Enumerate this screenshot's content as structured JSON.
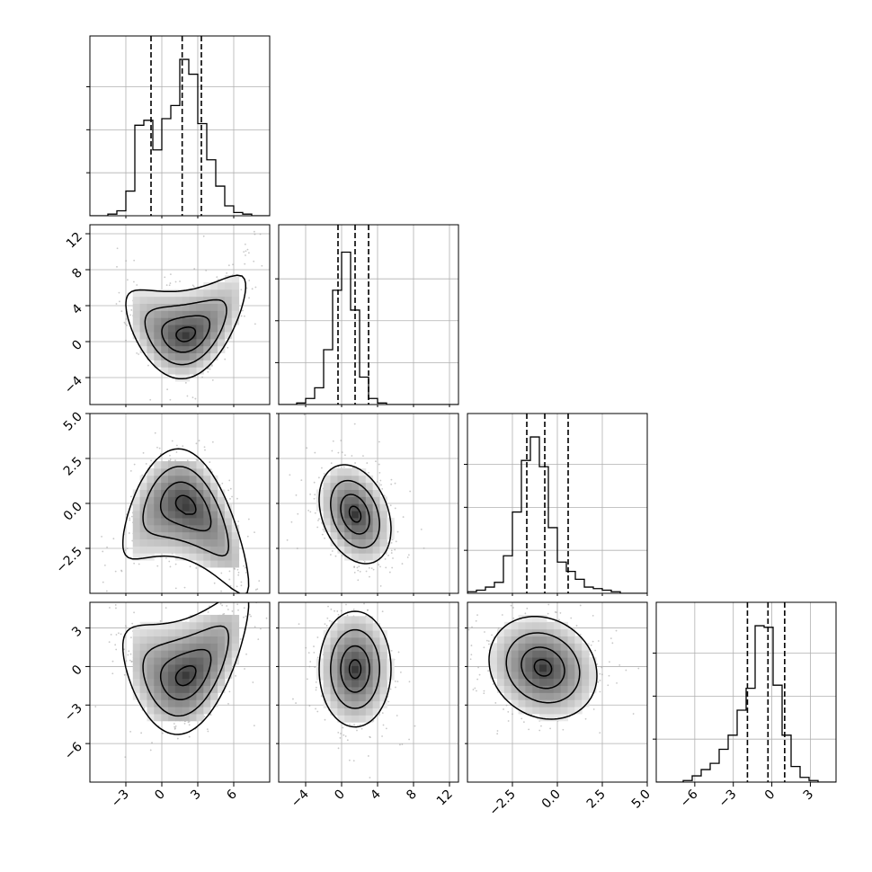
{
  "chart_data": {
    "type": "corner",
    "title": "",
    "style": {
      "histogram_color": "#000000",
      "quantile_color": "#000000",
      "point_color": "#9a9a9a",
      "grid_color": "#b0b0b0",
      "grid": true
    },
    "parameters": [
      {
        "index": 0,
        "range": [
          -6.0,
          9.0
        ],
        "ticks": [
          -3,
          0,
          3,
          6
        ],
        "tick_labels": [
          "−3",
          "0",
          "3",
          "6"
        ],
        "quantiles": [
          -0.9,
          1.7,
          3.3
        ],
        "hist": {
          "edges_start": -6.0,
          "bin_width": 0.75,
          "counts": [
            0,
            0,
            1,
            3,
            15,
            55,
            58,
            40,
            59,
            67,
            95,
            86,
            56,
            34,
            18,
            6,
            2,
            1,
            0,
            0
          ]
        },
        "hist_ymax": 1.15
      },
      {
        "index": 1,
        "range": [
          -7.0,
          13.0
        ],
        "ticks": [
          -4,
          0,
          4,
          8,
          12
        ],
        "tick_labels": [
          "−4",
          "0",
          "4",
          "8",
          "12"
        ],
        "quantiles": [
          -0.4,
          1.5,
          3.0
        ],
        "hist": {
          "edges_start": -7.0,
          "bin_width": 1.0,
          "counts": [
            0,
            0,
            1,
            4,
            11,
            36,
            75,
            100,
            62,
            18,
            4,
            1,
            0,
            0,
            0,
            0,
            0,
            0,
            0,
            0
          ]
        },
        "hist_ymax": 1.18
      },
      {
        "index": 2,
        "range": [
          -5.0,
          5.0
        ],
        "ticks": [
          -2.5,
          0.0,
          2.5,
          5.0
        ],
        "tick_labels": [
          "−2.5",
          "0.0",
          "2.5",
          "5.0"
        ],
        "quantiles": [
          -1.7,
          -0.7,
          0.6
        ],
        "hist": {
          "edges_start": -5.0,
          "bin_width": 0.5,
          "counts": [
            1,
            2,
            4,
            7,
            24,
            52,
            85,
            100,
            81,
            42,
            20,
            14,
            9,
            4,
            3,
            2,
            1,
            0,
            0,
            0
          ]
        },
        "hist_ymax": 1.15
      },
      {
        "index": 3,
        "range": [
          -9.0,
          5.0
        ],
        "ticks": [
          -6,
          -3,
          0,
          3
        ],
        "tick_labels": [
          "−6",
          "−3",
          "0",
          "3"
        ],
        "quantiles": [
          -1.9,
          -0.3,
          1.0
        ],
        "hist": {
          "edges_start": -9.0,
          "bin_width": 0.7,
          "counts": [
            0,
            0,
            0,
            1,
            4,
            8,
            12,
            21,
            30,
            46,
            60,
            100,
            99,
            62,
            30,
            10,
            3,
            1,
            0,
            0
          ]
        },
        "hist_ymax": 1.15
      }
    ],
    "joint": [
      {
        "row": 1,
        "col": 0,
        "center": [
          2.0,
          1.5
        ],
        "sd": [
          2.0,
          2.0
        ],
        "rho": 0.2,
        "banana": 0.35,
        "levels": [
          0.4,
          1.0,
          1.7,
          2.5
        ]
      },
      {
        "row": 2,
        "col": 0,
        "center": [
          2.0,
          -0.6
        ],
        "sd": [
          2.1,
          1.3
        ],
        "rho": -0.35,
        "banana": -0.25,
        "levels": [
          0.4,
          1.0,
          1.7,
          2.5
        ]
      },
      {
        "row": 2,
        "col": 1,
        "center": [
          1.5,
          -0.6
        ],
        "sd": [
          1.6,
          1.1
        ],
        "rho": -0.3,
        "banana": 0.0,
        "levels": [
          0.4,
          1.0,
          1.7,
          2.5
        ]
      },
      {
        "row": 3,
        "col": 0,
        "center": [
          2.0,
          -0.1
        ],
        "sd": [
          2.1,
          1.9
        ],
        "rho": 0.35,
        "banana": 0.3,
        "levels": [
          0.4,
          1.0,
          1.7,
          2.5
        ]
      },
      {
        "row": 3,
        "col": 1,
        "center": [
          1.5,
          -0.2
        ],
        "sd": [
          1.6,
          1.8
        ],
        "rho": 0.0,
        "banana": 0.0,
        "levels": [
          0.4,
          1.0,
          1.7,
          2.5
        ]
      },
      {
        "row": 3,
        "col": 2,
        "center": [
          -0.8,
          -0.1
        ],
        "sd": [
          1.2,
          1.6
        ],
        "rho": -0.15,
        "banana": 0.0,
        "levels": [
          0.4,
          1.0,
          1.7,
          2.5
        ]
      }
    ]
  }
}
